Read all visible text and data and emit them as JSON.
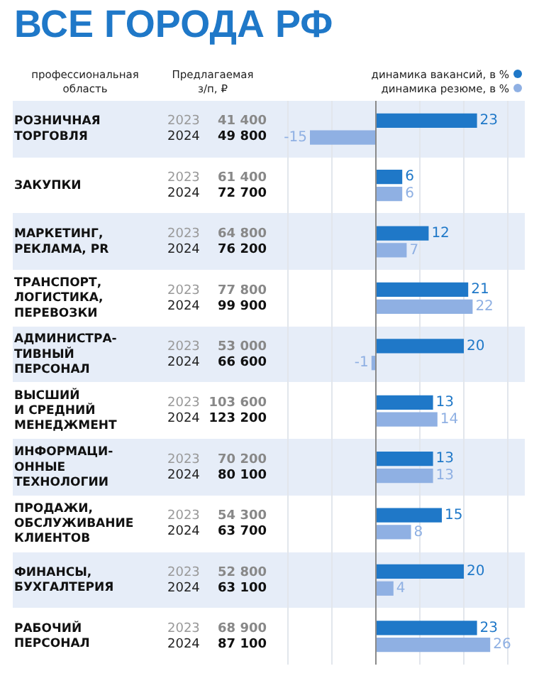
{
  "chart_data": {
    "type": "bar",
    "orientation": "horizontal",
    "title": "ВСЕ ГОРОДА РФ",
    "categories": [
      "РОЗНИЧНАЯ\nТОРГОВЛЯ",
      "ЗАКУПКИ",
      "МАРКЕТИНГ,\nРЕКЛАМА, PR",
      "ТРАНСПОРТ,\nЛОГИСТИКА,\nПЕРЕВОЗКИ",
      "АДМИНИСТРА-\nТИВНЫЙ\nПЕРСОНАЛ",
      "ВЫСШИЙ\nИ СРЕДНИЙ\nМЕНЕДЖМЕНТ",
      "ИНФОРМАЦИ-\nОННЫЕ\nТЕХНОЛОГИИ",
      "ПРОДАЖИ,\nОБСЛУЖИВАНИЕ\nКЛИЕНТОВ",
      "ФИНАНСЫ,\nБУХГАЛТЕРИЯ",
      "РАБОЧИЙ\nПЕРСОНАЛ"
    ],
    "series": [
      {
        "name": "динамика вакансий, в %",
        "color": "#1f78c8",
        "values": [
          23,
          6,
          12,
          21,
          20,
          13,
          13,
          15,
          20,
          23
        ]
      },
      {
        "name": "динамика резюме, в %",
        "color": "#8fb0e3",
        "values": [
          -15,
          6,
          7,
          22,
          -1,
          14,
          13,
          8,
          4,
          26
        ]
      }
    ],
    "xlim": [
      -20,
      30
    ],
    "xticks": [
      {
        "value": -20,
        "label": null
      },
      {
        "value": -10,
        "label": null
      },
      {
        "value": 0,
        "label": null
      },
      {
        "value": 10,
        "label": null
      },
      {
        "value": 20,
        "label": null
      },
      {
        "value": 30,
        "label": null
      }
    ],
    "grid": "x",
    "tick_labels": "y",
    "legend": "top right",
    "data_labels": true,
    "annotations": [
      "профессиональная\nобласть",
      "Предлагаемая\nз/п, ₽",
      "2023",
      "41 400",
      "2024",
      "49 800",
      "2023",
      "61 400",
      "2024",
      "72 700",
      "2023",
      "64 800",
      "2024",
      "76 200",
      "2023",
      "77 800",
      "2024",
      "99 900",
      "2023",
      "53 000",
      "2024",
      "66 600",
      "2023",
      "103 600",
      "2024",
      "123 200",
      "2023",
      "70 200",
      "2024",
      "80 100",
      "2023",
      "54 300",
      "2024",
      "63 700",
      "2023",
      "52 800",
      "2024",
      "63 100",
      "2023",
      "68 900",
      "2024",
      "87 100"
    ]
  }
}
